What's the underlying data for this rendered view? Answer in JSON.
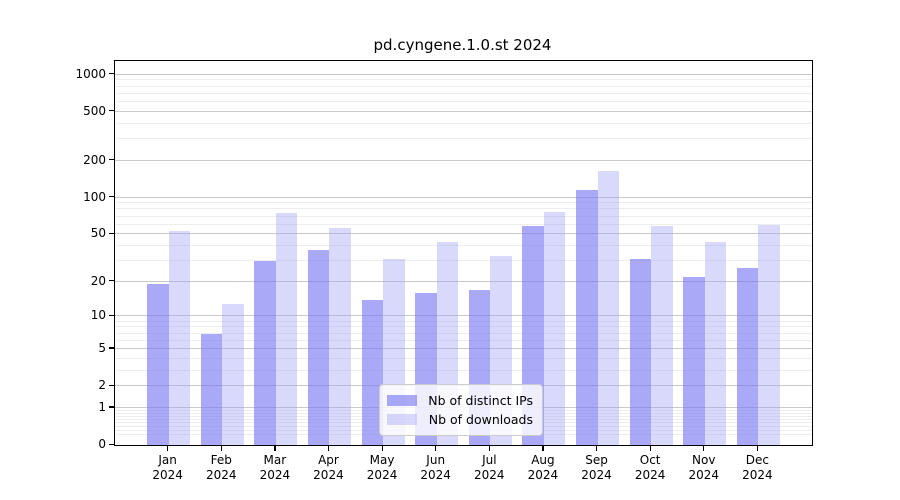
{
  "title": "pd.cyngene.1.0.st 2024",
  "colors": {
    "ips_bar": "rgba(123,123,243,0.65)",
    "downloads_bar": "rgba(160,160,245,0.4)",
    "grid_major": "#c9c9c9",
    "grid_minor": "#ededed",
    "axis": "#000000",
    "legend_border": "#cccccc"
  },
  "legend": {
    "items": [
      {
        "label": "Nb of distinct IPs",
        "series": "ips"
      },
      {
        "label": "Nb of downloads",
        "series": "downloads"
      }
    ]
  },
  "chart_data": {
    "type": "bar",
    "title": "pd.cyngene.1.0.st 2024",
    "categories": [
      "Jan 2024",
      "Feb 2024",
      "Mar 2024",
      "Apr 2024",
      "May 2024",
      "Jun 2024",
      "Jul 2024",
      "Aug 2024",
      "Sep 2024",
      "Oct 2024",
      "Nov 2024",
      "Dec 2024"
    ],
    "series": [
      {
        "name": "Nb of distinct IPs",
        "values": [
          19,
          7,
          30,
          37,
          14,
          16,
          17,
          59,
          115,
          31,
          22,
          26
        ]
      },
      {
        "name": "Nb of downloads",
        "values": [
          53,
          13,
          75,
          56,
          31,
          43,
          33,
          76,
          164,
          59,
          43,
          60
        ]
      }
    ],
    "xlabel": "",
    "ylabel": "",
    "yscale": "log10(1+y)",
    "ylim": [
      0,
      1290
    ],
    "yticks": [
      0,
      1,
      2,
      5,
      10,
      20,
      50,
      100,
      200,
      500,
      1000
    ],
    "minor_yticks": [
      0.2,
      0.3,
      0.4,
      0.5,
      0.6,
      0.7,
      0.8,
      0.9,
      3,
      4,
      6,
      7,
      8,
      9,
      30,
      40,
      60,
      70,
      80,
      90,
      300,
      400,
      600,
      700,
      800,
      900
    ],
    "grid": true,
    "legend_position": "lower center"
  }
}
